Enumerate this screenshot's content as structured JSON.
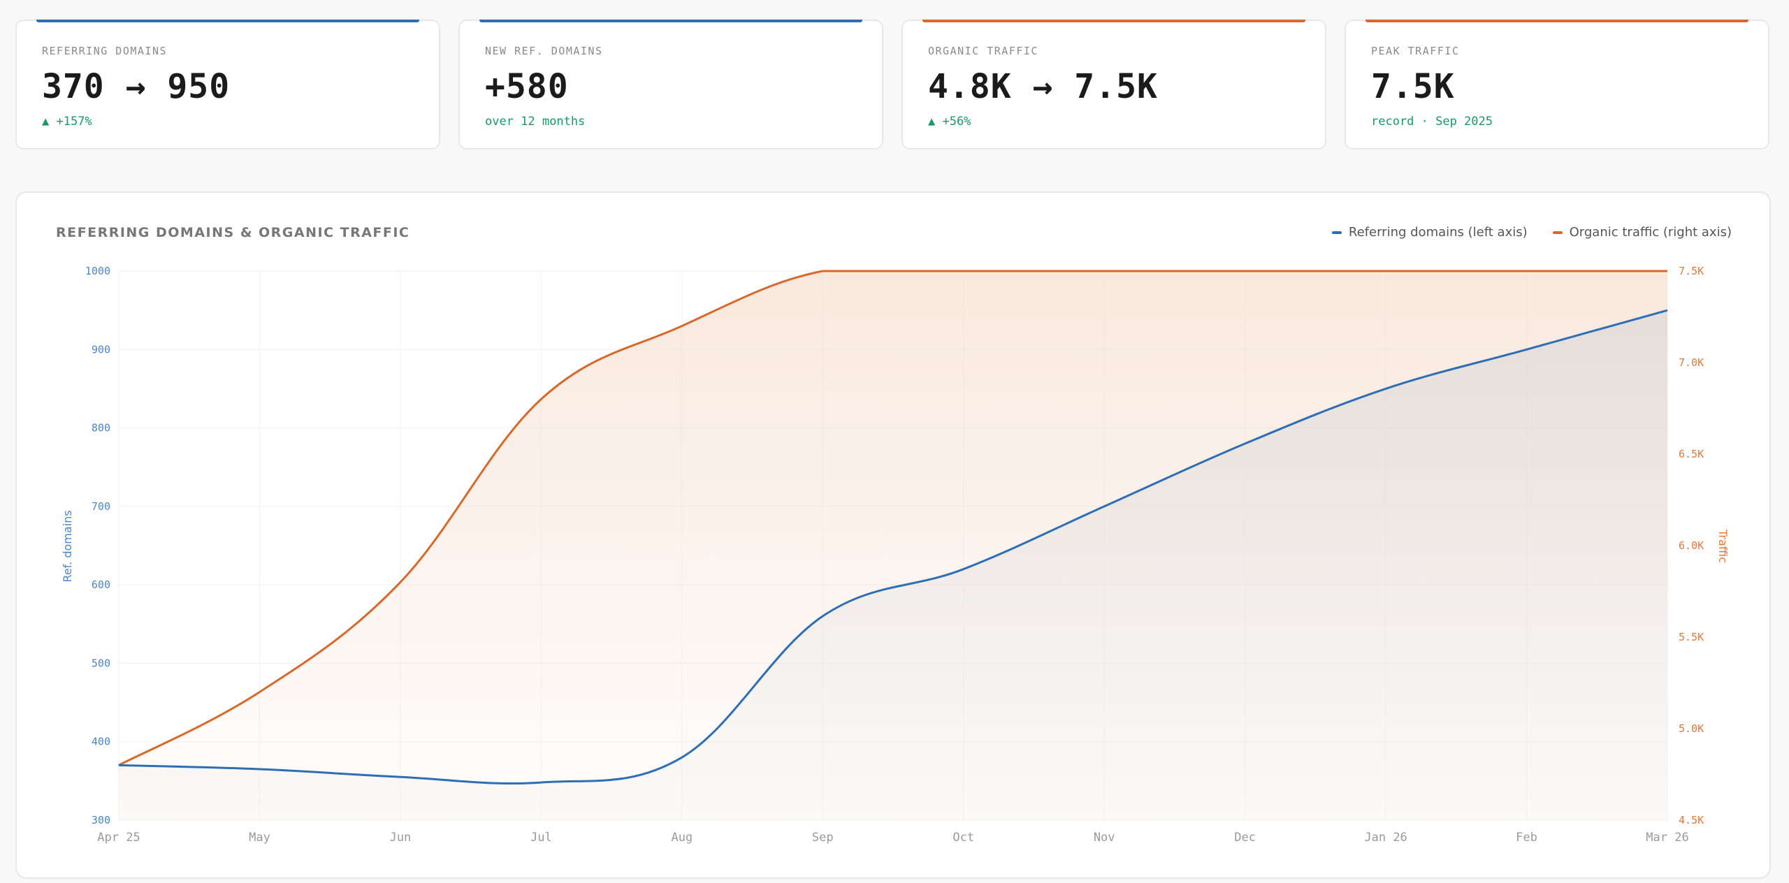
{
  "cards": [
    {
      "label": "REFERRING DOMAINS",
      "value": "370 → 950",
      "sub": "▲ +157%",
      "accent": "#2f6db5"
    },
    {
      "label": "NEW REF. DOMAINS",
      "value": "+580",
      "sub": "over 12 months",
      "accent": "#2f6db5"
    },
    {
      "label": "ORGANIC TRAFFIC",
      "value": "4.8K → 7.5K",
      "sub": "▲ +56%",
      "accent": "#d9692b"
    },
    {
      "label": "PEAK TRAFFIC",
      "value": "7.5K",
      "sub": "record · Sep 2025",
      "accent": "#d9692b"
    }
  ],
  "panel": {
    "title": "REFERRING DOMAINS & ORGANIC TRAFFIC",
    "legend": [
      {
        "label": "Referring domains (left axis)",
        "color": "#2f6db5"
      },
      {
        "label": "Organic traffic (right axis)",
        "color": "#d9692b"
      }
    ]
  },
  "chart_data": {
    "type": "line",
    "x": [
      "Apr 25",
      "May",
      "Jun",
      "Jul",
      "Aug",
      "Sep",
      "Oct",
      "Nov",
      "Dec",
      "Jan 26",
      "Feb",
      "Mar 26"
    ],
    "series": [
      {
        "name": "Referring domains (left axis)",
        "axis": "left",
        "color": "#2f6db5",
        "values": [
          370,
          365,
          355,
          348,
          380,
          560,
          620,
          700,
          780,
          850,
          900,
          950
        ]
      },
      {
        "name": "Organic traffic (right axis)",
        "axis": "right",
        "color": "#d9692b",
        "values": [
          4800,
          5200,
          5800,
          6800,
          7200,
          7500,
          7500,
          7500,
          7500,
          7500,
          7500,
          7500
        ]
      }
    ],
    "ylabel_left": "Ref. domains",
    "ylabel_right": "Traffic",
    "ylim_left": [
      300,
      1000
    ],
    "ylim_right": [
      4500,
      7500
    ],
    "yticks_left": [
      "300",
      "400",
      "500",
      "600",
      "700",
      "800",
      "900",
      "1000"
    ],
    "yticks_right": [
      "4.5K",
      "5.0K",
      "5.5K",
      "6.0K",
      "6.5K",
      "7.0K",
      "7.5K"
    ],
    "grid": true,
    "legend_position": "top-right"
  }
}
